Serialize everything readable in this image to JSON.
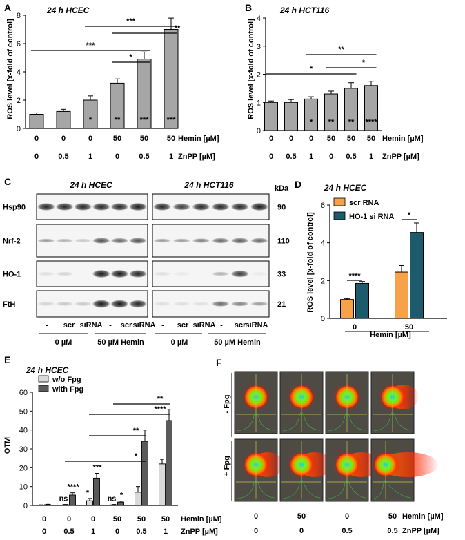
{
  "figure": {
    "panels": {
      "A": {
        "label": "A",
        "title": "24 h HCEC"
      },
      "B": {
        "label": "B",
        "title": "24 h HCT116"
      },
      "C": {
        "label": "C"
      },
      "D": {
        "label": "D",
        "title": "24 h HCEC"
      },
      "E": {
        "label": "E",
        "title": "24 h HCEC"
      },
      "F": {
        "label": "F"
      }
    },
    "treatments": {
      "hemin_label": "Hemin [µM]",
      "znpp_label": "ZnPP [µM]",
      "hemin_values": [
        "0",
        "0",
        "0",
        "50",
        "50",
        "50"
      ],
      "znpp_values": [
        "0",
        "0.5",
        "1",
        "0",
        "0.5",
        "1"
      ]
    }
  },
  "chart_data": [
    {
      "id": "A",
      "type": "bar",
      "title": "24 h HCEC",
      "ylabel": "ROS level [x-fold of control]",
      "ylim": [
        0,
        8
      ],
      "yticks": [
        0,
        2,
        4,
        6,
        8
      ],
      "values": [
        1.0,
        1.2,
        2.0,
        3.2,
        4.9,
        7.0
      ],
      "errors": [
        0.1,
        0.15,
        0.3,
        0.3,
        0.5,
        0.8
      ],
      "bar_labels": [
        "",
        "",
        "*",
        "**",
        "***",
        "***"
      ],
      "brackets": [
        {
          "from": 2,
          "to": 5,
          "label": "***"
        },
        {
          "from": 0,
          "to": 4,
          "label": "***"
        },
        {
          "from": 3,
          "to": 5,
          "label": "**"
        },
        {
          "from": 3,
          "to": 4,
          "label": "*"
        }
      ]
    },
    {
      "id": "B",
      "type": "bar",
      "title": "24 h HCT116",
      "ylabel": "ROS level [x-fold of control]",
      "ylim": [
        0,
        4
      ],
      "yticks": [
        0,
        1,
        2,
        3,
        4
      ],
      "values": [
        1.0,
        1.0,
        1.12,
        1.3,
        1.5,
        1.6
      ],
      "errors": [
        0.05,
        0.1,
        0.08,
        0.1,
        0.2,
        0.15
      ],
      "bar_labels": [
        "",
        "",
        "*",
        "**",
        "**",
        "****"
      ],
      "brackets": [
        {
          "from": 2,
          "to": 5,
          "label": "**"
        },
        {
          "from": 0,
          "to": 4,
          "label": "*"
        },
        {
          "from": 3,
          "to": 5,
          "label": "*"
        }
      ]
    },
    {
      "id": "D",
      "type": "bar",
      "title": "24 h HCEC",
      "ylabel": "ROS level [x-fold of control]",
      "xlabel": "Hemin [µM]",
      "ylim": [
        0,
        6
      ],
      "yticks": [
        0,
        2,
        4,
        6
      ],
      "categories": [
        "0",
        "50"
      ],
      "series": [
        {
          "name": "scr RNA",
          "color": "#f7a24a",
          "values": [
            1.0,
            2.45
          ],
          "errors": [
            0.05,
            0.35
          ]
        },
        {
          "name": "HO-1 si RNA",
          "color": "#1d5a6b",
          "values": [
            1.85,
            4.55
          ],
          "errors": [
            0.1,
            0.5
          ]
        }
      ],
      "brackets": [
        {
          "category": "0",
          "label": "****"
        },
        {
          "category": "50",
          "label": "*"
        }
      ]
    },
    {
      "id": "E",
      "type": "bar",
      "title": "24 h HCEC",
      "ylabel": "OTM",
      "ylim": [
        0,
        60
      ],
      "yticks": [
        0,
        10,
        20,
        30,
        40,
        50,
        60
      ],
      "series": [
        {
          "name": "w/o Fpg",
          "color": "#d9d9d9",
          "values": [
            0.2,
            0.3,
            2.5,
            0.3,
            7,
            22
          ],
          "errors": [
            0.1,
            0.2,
            1.2,
            0.2,
            3,
            2.5
          ]
        },
        {
          "name": "with Fpg",
          "color": "#5a5a5a",
          "values": [
            0.4,
            5.5,
            14.5,
            1.8,
            34,
            45
          ],
          "errors": [
            0.2,
            1.2,
            2.5,
            0.5,
            6,
            6
          ]
        }
      ],
      "group_labels": [
        {
          "left": "",
          "right": ""
        },
        {
          "left": "ns",
          "right": "****"
        },
        {
          "left": "*",
          "right": "***"
        },
        {
          "left": "ns",
          "right": "*"
        },
        {
          "left": "",
          "right": ""
        },
        {
          "left": "",
          "right": ""
        }
      ],
      "brackets": [
        {
          "from": 1,
          "to": 4,
          "label": "*"
        },
        {
          "from": 2,
          "to": 4,
          "label": "**"
        },
        {
          "from": 2,
          "to": 5,
          "label": "****"
        },
        {
          "from": 3,
          "to": 5,
          "label": "**"
        }
      ]
    }
  ],
  "blot": {
    "left_title": "24 h HCEC",
    "right_title": "24 h HCT116",
    "kda_label": "kDa",
    "proteins": [
      {
        "name": "Hsp90",
        "kda": "90"
      },
      {
        "name": "Nrf-2",
        "kda": "110"
      },
      {
        "name": "HO-1",
        "kda": "33"
      },
      {
        "name": "FtH",
        "kda": "21"
      }
    ],
    "lanes": [
      "-",
      "scr",
      "siRNA",
      "-",
      "scr",
      "siRNA"
    ],
    "group_0": "0 µM",
    "group_50": "50 µM Hemin"
  },
  "comet": {
    "row_labels": [
      "- Fpg",
      "+ Fpg"
    ],
    "hemin_label": "Hemin [µM]",
    "znpp_label": "ZnPP [µM]",
    "hemin_values": [
      "0",
      "50",
      "0",
      "50"
    ],
    "znpp_values": [
      "0",
      "0",
      "0.5",
      "0.5"
    ]
  }
}
